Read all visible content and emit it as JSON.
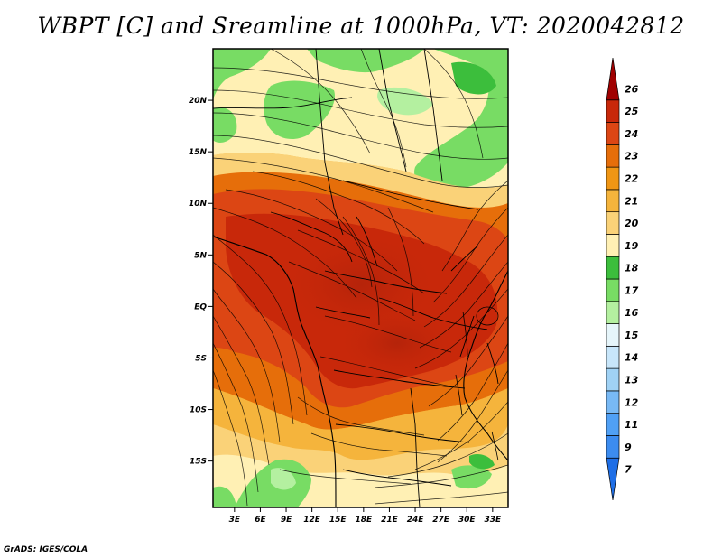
{
  "title": "WBPT [C] and Sreamline at 1000hPa, VT: 2020042812",
  "footer": "GrADS: IGES/COLA",
  "chart_data": {
    "type": "heatmap",
    "variable": "WBPT [C]",
    "level": "1000hPa",
    "valid_time": "2020042812",
    "lon_ticks": [
      "3E",
      "6E",
      "9E",
      "12E",
      "15E",
      "18E",
      "21E",
      "24E",
      "27E",
      "30E",
      "33E"
    ],
    "lon_values": [
      3,
      6,
      9,
      12,
      15,
      18,
      21,
      24,
      27,
      30,
      33
    ],
    "lat_ticks": [
      "20N",
      "15N",
      "10N",
      "5N",
      "EQ",
      "5S",
      "10S",
      "15S"
    ],
    "lat_values": [
      20,
      15,
      10,
      5,
      0,
      -5,
      -10,
      -15
    ],
    "lon_range": [
      0.5,
      34.8
    ],
    "lat_range": [
      -19.5,
      25
    ],
    "colorbar": {
      "labels": [
        "7",
        "9",
        "11",
        "12",
        "13",
        "14",
        "15",
        "16",
        "17",
        "18",
        "19",
        "20",
        "21",
        "22",
        "23",
        "24",
        "25",
        "26"
      ],
      "colors": [
        "#1e6ee6",
        "#3c8cf0",
        "#50a0f5",
        "#78b9f5",
        "#a0d2f5",
        "#c8e6fa",
        "#e6f5fa",
        "#b4f0a0",
        "#78dc64",
        "#3cbe3c",
        "#fff0b4",
        "#fad278",
        "#f5b43c",
        "#f09614",
        "#e66e0a",
        "#dc4614",
        "#c8280a",
        "#a00000"
      ]
    }
  }
}
